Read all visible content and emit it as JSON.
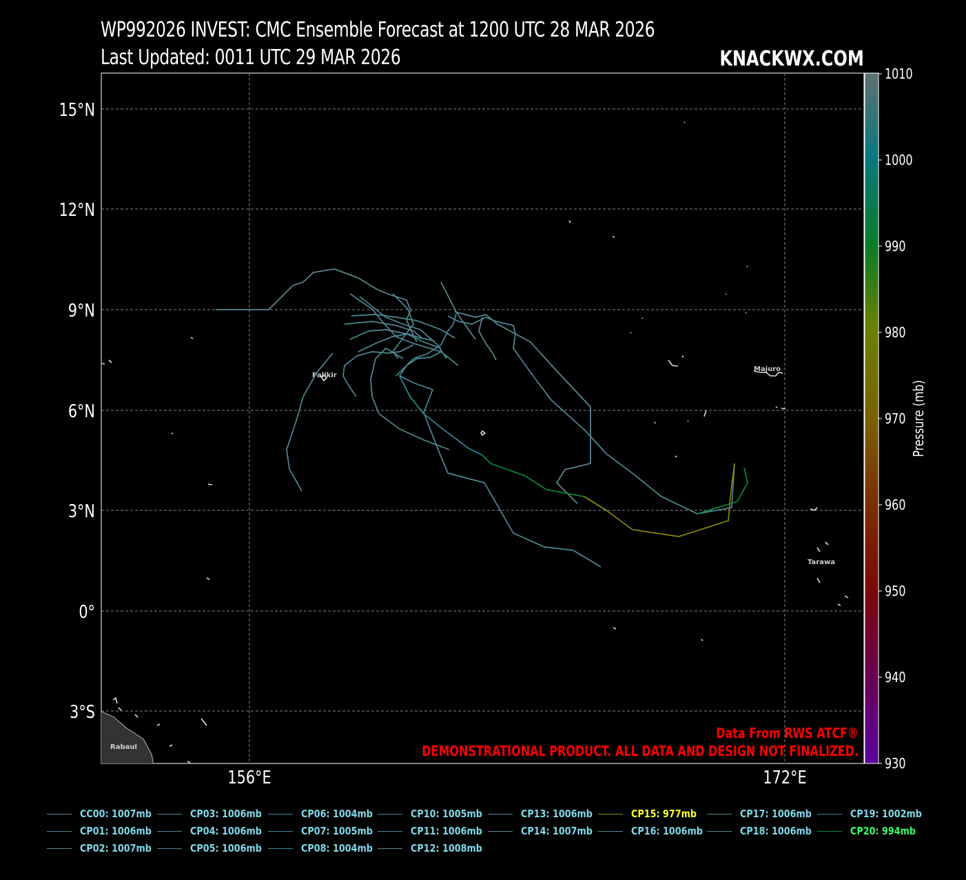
{
  "header": {
    "title_line1": "WP992026 INVEST: CMC Ensemble Forecast at 1200 UTC 28 MAR 2026",
    "title_line2": "Last Updated: 0011 UTC 29 MAR 2026",
    "brand": "KNACKWX.COM"
  },
  "map": {
    "lat_labels": [
      "15°N",
      "12°N",
      "9°N",
      "6°N",
      "3°N",
      "0°",
      "3°S"
    ],
    "lon_labels": [
      "156°E",
      "172°E"
    ],
    "places": [
      "Palikir",
      "Majuro",
      "Tarawa",
      "Rabaul"
    ],
    "source_note": "Data From RWS ATCF®",
    "disclaimer": "DEMONSTRATIONAL PRODUCT. ALL DATA AND DESIGN NOT FINALIZED.",
    "note_color": "#ff0000"
  },
  "colorbar": {
    "label": "Pressure (mb)",
    "ticks": [
      "1010",
      "1000",
      "990",
      "980",
      "970",
      "960",
      "950",
      "940",
      "930"
    ]
  },
  "legend": [
    {
      "label": "CC00: 1007mb",
      "color": "#5a8a94"
    },
    {
      "label": "CP01: 1006mb",
      "color": "#4e8a96"
    },
    {
      "label": "CP02: 1007mb",
      "color": "#5a8a94"
    },
    {
      "label": "CP03: 1006mb",
      "color": "#4e8a96"
    },
    {
      "label": "CP04: 1006mb",
      "color": "#4e8a96"
    },
    {
      "label": "CP05: 1006mb",
      "color": "#4e8a96"
    },
    {
      "label": "CP06: 1004mb",
      "color": "#2e8c98"
    },
    {
      "label": "CP07: 1005mb",
      "color": "#3a8a98"
    },
    {
      "label": "CP08: 1004mb",
      "color": "#2e8c98"
    },
    {
      "label": "CP10: 1005mb",
      "color": "#3a8a98"
    },
    {
      "label": "CP11: 1006mb",
      "color": "#4e8a96"
    },
    {
      "label": "CP12: 1008mb",
      "color": "#5e8890"
    },
    {
      "label": "CP13: 1006mb",
      "color": "#4e8a96"
    },
    {
      "label": "CP14: 1007mb",
      "color": "#5a8a94"
    },
    {
      "label": "CP15: 977mb",
      "color": "#8a8a00",
      "text_color": "#ffff33"
    },
    {
      "label": "CP16: 1006mb",
      "color": "#4e8a96"
    },
    {
      "label": "CP17: 1006mb",
      "color": "#4e8a96"
    },
    {
      "label": "CP18: 1006mb",
      "color": "#4e8a96"
    },
    {
      "label": "CP19: 1002mb",
      "color": "#1a8c94"
    },
    {
      "label": "CP20: 994mb",
      "color": "#0c8a3a",
      "text_color": "#33ff66"
    }
  ]
}
